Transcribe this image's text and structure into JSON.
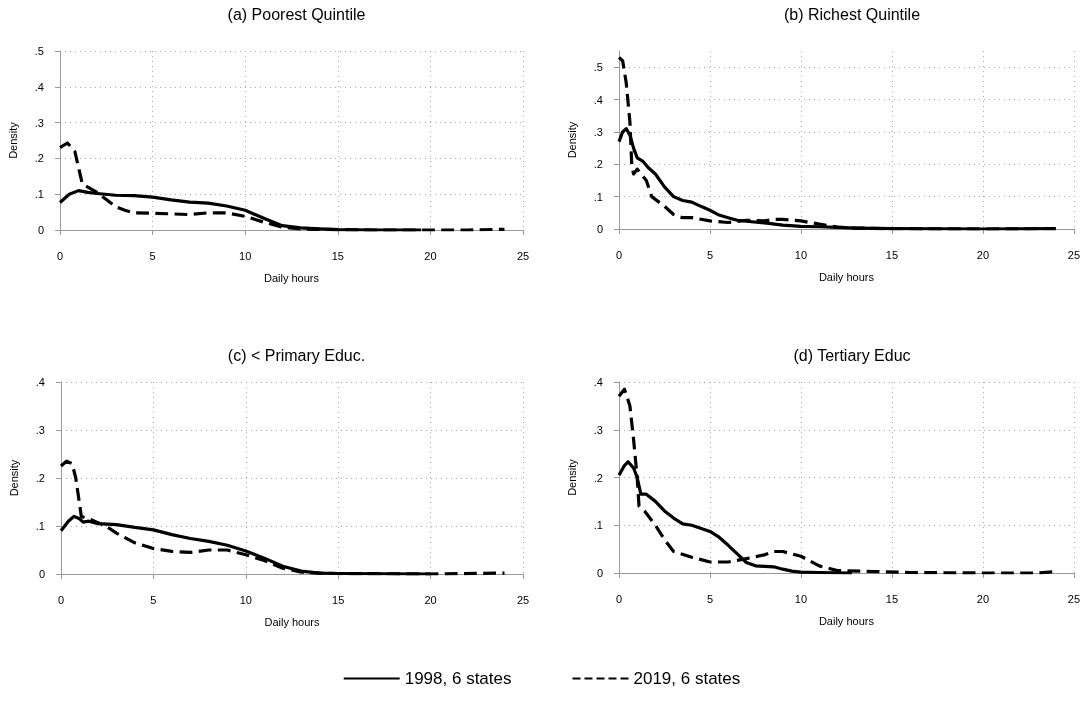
{
  "chart_data": [
    {
      "type": "line",
      "title": "(a) Poorest Quintile",
      "xlabel": "Daily hours",
      "ylabel": "Density",
      "xlim": [
        0,
        25
      ],
      "xticks": [
        0,
        5,
        10,
        15,
        20,
        25
      ],
      "ylim": [
        0,
        0.5
      ],
      "yticks": [
        {
          "value": 0,
          "label": "0"
        },
        {
          "value": 0.1,
          "label": ".1"
        },
        {
          "value": 0.2,
          "label": ".2"
        },
        {
          "value": 0.3,
          "label": ".3"
        },
        {
          "value": 0.4,
          "label": ".4"
        },
        {
          "value": 0.5,
          "label": ".5"
        }
      ],
      "grid": true,
      "legend": "bottom",
      "marker": "none",
      "series": [
        {
          "name": "1998, 6 states",
          "color": "#000000",
          "line_style": "solid",
          "x": [
            0,
            0.5,
            1,
            1.5,
            2,
            3,
            4,
            5,
            6,
            7,
            8,
            9,
            10,
            11,
            12,
            13,
            14,
            15,
            17,
            19.5
          ],
          "values": [
            0.077,
            0.1,
            0.11,
            0.105,
            0.102,
            0.097,
            0.096,
            0.092,
            0.084,
            0.078,
            0.075,
            0.067,
            0.055,
            0.033,
            0.012,
            0.006,
            0.003,
            0.001,
            0,
            0
          ]
        },
        {
          "name": "2019, 6 states",
          "color": "#000000",
          "line_style": "dashed",
          "x": [
            0,
            0.4,
            0.8,
            1.2,
            1.5,
            2,
            2.5,
            3,
            3.5,
            4,
            5,
            6,
            7,
            8,
            9,
            10,
            11,
            12,
            13,
            14,
            15,
            17,
            20,
            22,
            24
          ],
          "values": [
            0.23,
            0.243,
            0.22,
            0.13,
            0.12,
            0.105,
            0.085,
            0.065,
            0.055,
            0.048,
            0.047,
            0.045,
            0.043,
            0.048,
            0.048,
            0.038,
            0.022,
            0.008,
            0.003,
            0.002,
            0.001,
            0,
            0,
            0,
            0.002
          ]
        }
      ]
    },
    {
      "type": "line",
      "title": "(b) Richest Quintile",
      "xlabel": "Daily hours",
      "ylabel": "Density",
      "xlim": [
        0,
        25
      ],
      "xticks": [
        0,
        5,
        10,
        15,
        20,
        25
      ],
      "ylim": [
        0,
        0.55
      ],
      "yticks": [
        {
          "value": 0,
          "label": "0"
        },
        {
          "value": 0.1,
          "label": ".1"
        },
        {
          "value": 0.2,
          "label": ".2"
        },
        {
          "value": 0.3,
          "label": ".3"
        },
        {
          "value": 0.4,
          "label": ".4"
        },
        {
          "value": 0.5,
          "label": ".5"
        }
      ],
      "grid": true,
      "marker": "none",
      "series": [
        {
          "color": "#000000",
          "line_style": "solid",
          "x": [
            0,
            0.2,
            0.4,
            0.6,
            0.8,
            1,
            1.3,
            1.6,
            2,
            2.5,
            3,
            3.5,
            4,
            4.5,
            5,
            5.5,
            6,
            6.5,
            7,
            8,
            9,
            10,
            11,
            12,
            13,
            15,
            20,
            24
          ],
          "values": [
            0.27,
            0.3,
            0.31,
            0.29,
            0.25,
            0.22,
            0.21,
            0.19,
            0.17,
            0.13,
            0.1,
            0.088,
            0.083,
            0.07,
            0.058,
            0.043,
            0.035,
            0.027,
            0.024,
            0.019,
            0.012,
            0.008,
            0.007,
            0.005,
            0.003,
            0.001,
            0,
            0.001
          ]
        },
        {
          "color": "#000000",
          "line_style": "dashed",
          "x": [
            0,
            0.2,
            0.4,
            0.6,
            0.7,
            0.8,
            1,
            1.5,
            1.8,
            2.5,
            3,
            3.5,
            4,
            5,
            6,
            7,
            8,
            8.5,
            9,
            10,
            11,
            12,
            13,
            15,
            20,
            24
          ],
          "values": [
            0.53,
            0.52,
            0.45,
            0.33,
            0.2,
            0.17,
            0.185,
            0.15,
            0.1,
            0.07,
            0.045,
            0.035,
            0.035,
            0.025,
            0.02,
            0.027,
            0.025,
            0.03,
            0.03,
            0.025,
            0.015,
            0.006,
            0.003,
            0.001,
            0,
            0.001
          ]
        }
      ]
    },
    {
      "type": "line",
      "title": "(c) < Primary Educ.",
      "xlabel": "Daily hours",
      "ylabel": "Density",
      "xlim": [
        0,
        25
      ],
      "xticks": [
        0,
        5,
        10,
        15,
        20,
        25
      ],
      "ylim": [
        0,
        0.4
      ],
      "yticks": [
        {
          "value": 0,
          "label": "0"
        },
        {
          "value": 0.1,
          "label": ".1"
        },
        {
          "value": 0.2,
          "label": ".2"
        },
        {
          "value": 0.3,
          "label": ".3"
        },
        {
          "value": 0.4,
          "label": ".4"
        }
      ],
      "grid": true,
      "marker": "none",
      "series": [
        {
          "color": "#000000",
          "line_style": "solid",
          "x": [
            0,
            0.4,
            0.7,
            1,
            1.2,
            1.5,
            2,
            3,
            4,
            5,
            6,
            7,
            8,
            9,
            10,
            11,
            12,
            13,
            14,
            15,
            20
          ],
          "values": [
            0.09,
            0.11,
            0.12,
            0.115,
            0.108,
            0.11,
            0.105,
            0.103,
            0.097,
            0.092,
            0.082,
            0.074,
            0.068,
            0.06,
            0.048,
            0.033,
            0.016,
            0.006,
            0.002,
            0.001,
            0
          ]
        },
        {
          "color": "#000000",
          "line_style": "dashed",
          "x": [
            0,
            0.3,
            0.6,
            0.8,
            1.1,
            1.5,
            2,
            2.5,
            3,
            4,
            5,
            6,
            7,
            8,
            9,
            10,
            11,
            12,
            13,
            14,
            15,
            20,
            24
          ],
          "values": [
            0.225,
            0.235,
            0.23,
            0.2,
            0.12,
            0.115,
            0.107,
            0.098,
            0.085,
            0.065,
            0.053,
            0.047,
            0.045,
            0.05,
            0.05,
            0.04,
            0.028,
            0.012,
            0.004,
            0.002,
            0.001,
            0,
            0.002
          ]
        }
      ]
    },
    {
      "type": "line",
      "title": "(d) Tertiary Educ",
      "xlabel": "Daily hours",
      "ylabel": "Density",
      "xlim": [
        0,
        25
      ],
      "xticks": [
        0,
        5,
        10,
        15,
        20,
        25
      ],
      "ylim": [
        0,
        0.4
      ],
      "yticks": [
        {
          "value": 0,
          "label": "0"
        },
        {
          "value": 0.1,
          "label": ".1"
        },
        {
          "value": 0.2,
          "label": ".2"
        },
        {
          "value": 0.3,
          "label": ".3"
        },
        {
          "value": 0.4,
          "label": ".4"
        }
      ],
      "grid": true,
      "marker": "none",
      "series": [
        {
          "color": "#000000",
          "line_style": "solid",
          "x": [
            0,
            0.3,
            0.5,
            0.8,
            1,
            1.2,
            1.5,
            2,
            2.5,
            3,
            3.5,
            4,
            5,
            5.5,
            6,
            6.5,
            7,
            7.5,
            8,
            8.5,
            9,
            9.5,
            10,
            11,
            12.8
          ],
          "values": [
            0.205,
            0.225,
            0.233,
            0.22,
            0.2,
            0.165,
            0.165,
            0.15,
            0.13,
            0.115,
            0.103,
            0.1,
            0.087,
            0.075,
            0.058,
            0.04,
            0.022,
            0.015,
            0.014,
            0.013,
            0.008,
            0.004,
            0.002,
            0.001,
            0
          ]
        },
        {
          "color": "#000000",
          "line_style": "dashed",
          "x": [
            0,
            0.3,
            0.6,
            0.8,
            1,
            1.1,
            1.4,
            2,
            2.5,
            3,
            4,
            5,
            6,
            7,
            8,
            8.5,
            9,
            10,
            11,
            12,
            14,
            16,
            20,
            23,
            24
          ],
          "values": [
            0.37,
            0.385,
            0.35,
            0.28,
            0.2,
            0.14,
            0.13,
            0.1,
            0.07,
            0.045,
            0.033,
            0.023,
            0.023,
            0.03,
            0.038,
            0.045,
            0.045,
            0.035,
            0.015,
            0.005,
            0.003,
            0.001,
            0,
            0,
            0.003
          ]
        }
      ]
    }
  ]
}
